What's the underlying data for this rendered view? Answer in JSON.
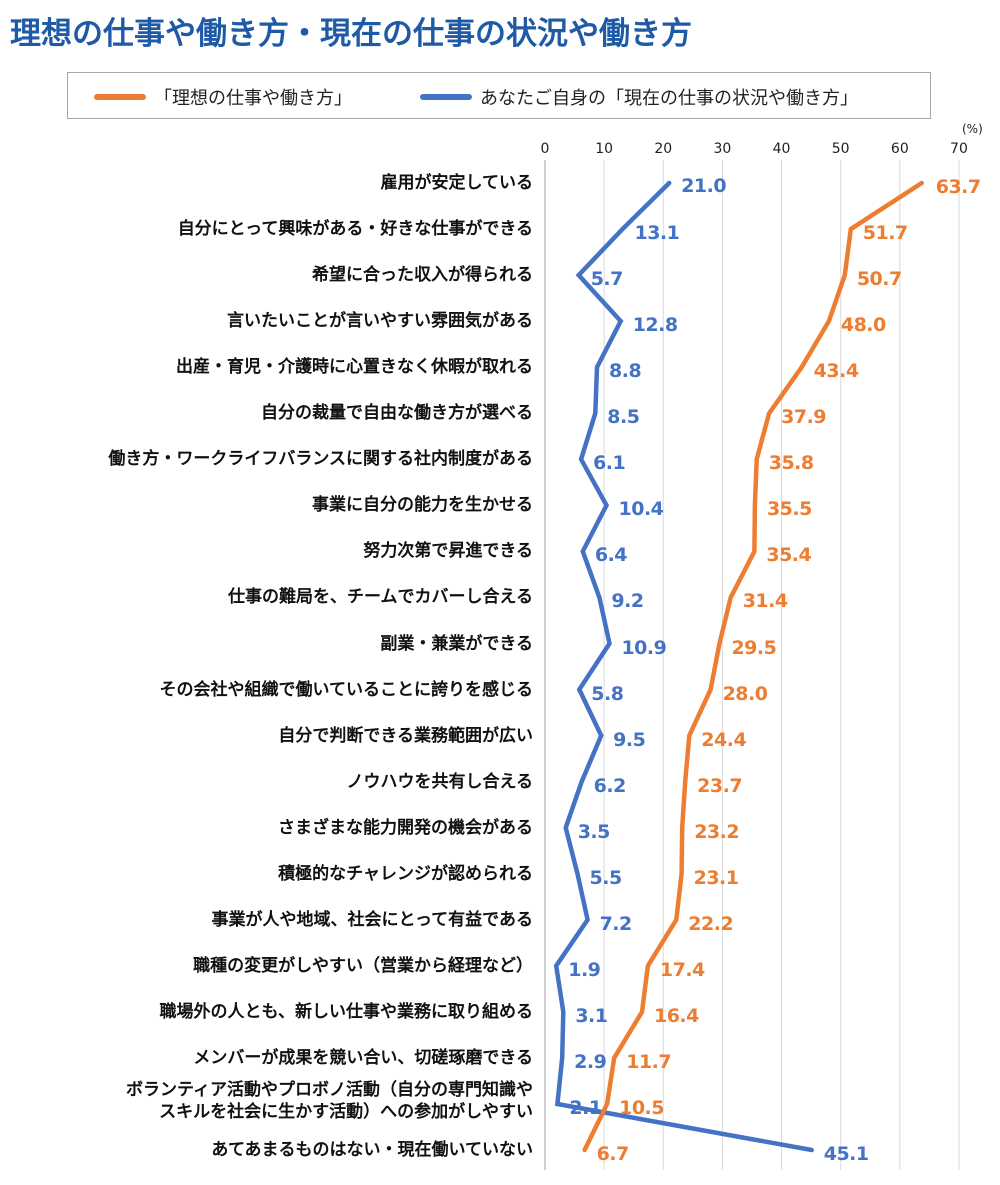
{
  "title": "理想の仕事や働き方・現在の仕事の状況や働き方",
  "legend": {
    "ideal": "「理想の仕事や働き方」",
    "current": "あなたご自身の「現在の仕事の状況や働き方」"
  },
  "colors": {
    "title": "#1f5aa6",
    "ideal": "#ed7d31",
    "current": "#4472c4",
    "grid": "#d9d9d9",
    "axis": "#bfbfbf"
  },
  "axis": {
    "unit": "(%)",
    "ticks": [
      "0",
      "10",
      "20",
      "30",
      "40",
      "50",
      "60",
      "70"
    ]
  },
  "chart_data": {
    "type": "line",
    "title": "理想の仕事や働き方・現在の仕事の状況や働き方",
    "orientation": "horizontal-values, categories on vertical axis",
    "xlabel": "(%)",
    "ylabel": "",
    "xlim": [
      0,
      70
    ],
    "grid": true,
    "legend_position": "top",
    "categories": [
      "雇用が安定している",
      "自分にとって興味がある・好きな仕事ができる",
      "希望に合った収入が得られる",
      "言いたいことが言いやすい雰囲気がある",
      "出産・育児・介護時に心置きなく休暇が取れる",
      "自分の裁量で自由な働き方が選べる",
      "働き方・ワークライフバランスに関する社内制度がある",
      "事業に自分の能力を生かせる",
      "努力次第で昇進できる",
      "仕事の難局を、チームでカバーし合える",
      "副業・兼業ができる",
      "その会社や組織で働いていることに誇りを感じる",
      "自分で判断できる業務範囲が広い",
      "ノウハウを共有し合える",
      "さまざまな能力開発の機会がある",
      "積極的なチャレンジが認められる",
      "事業が人や地域、社会にとって有益である",
      "職種の変更がしやすい（営業から経理など）",
      "職場外の人とも、新しい仕事や業務に取り組める",
      "メンバーが成果を競い合い、切磋琢磨できる",
      "ボランティア活動やプロボノ活動（自分の専門知識やスキルを社会に生かす活動）への参加がしやすい",
      "あてあまるものはない・現在働いていない"
    ],
    "category_lines": [
      [
        "雇用が安定している"
      ],
      [
        "自分にとって興味がある・好きな仕事ができる"
      ],
      [
        "希望に合った収入が得られる"
      ],
      [
        "言いたいことが言いやすい雰囲気がある"
      ],
      [
        "出産・育児・介護時に心置きなく休暇が取れる"
      ],
      [
        "自分の裁量で自由な働き方が選べる"
      ],
      [
        "働き方・ワークライフバランスに関する社内制度がある"
      ],
      [
        "事業に自分の能力を生かせる"
      ],
      [
        "努力次第で昇進できる"
      ],
      [
        "仕事の難局を、チームでカバーし合える"
      ],
      [
        "副業・兼業ができる"
      ],
      [
        "その会社や組織で働いていることに誇りを感じる"
      ],
      [
        "自分で判断できる業務範囲が広い"
      ],
      [
        "ノウハウを共有し合える"
      ],
      [
        "さまざまな能力開発の機会がある"
      ],
      [
        "積極的なチャレンジが認められる"
      ],
      [
        "事業が人や地域、社会にとって有益である"
      ],
      [
        "職種の変更がしやすい（営業から経理など）"
      ],
      [
        "職場外の人とも、新しい仕事や業務に取り組める"
      ],
      [
        "メンバーが成果を競い合い、切磋琢磨できる"
      ],
      [
        "ボランティア活動やプロボノ活動（自分の専門知識や",
        "スキルを社会に生かす活動）への参加がしやすい"
      ],
      [
        "あてあまるものはない・現在働いていない"
      ]
    ],
    "series": [
      {
        "name": "「理想の仕事や働き方」",
        "color": "#ed7d31",
        "values": [
          63.7,
          51.7,
          50.7,
          48.0,
          43.4,
          37.9,
          35.8,
          35.5,
          35.4,
          31.4,
          29.5,
          28.0,
          24.4,
          23.7,
          23.2,
          23.1,
          22.2,
          17.4,
          16.4,
          11.7,
          10.5,
          6.7
        ]
      },
      {
        "name": "あなたご自身の「現在の仕事の状況や働き方」",
        "color": "#4472c4",
        "values": [
          21.0,
          13.1,
          5.7,
          12.8,
          8.8,
          8.5,
          6.1,
          10.4,
          6.4,
          9.2,
          10.9,
          5.8,
          9.5,
          6.2,
          3.5,
          5.5,
          7.2,
          1.9,
          3.1,
          2.9,
          2.1,
          45.1
        ]
      }
    ]
  }
}
